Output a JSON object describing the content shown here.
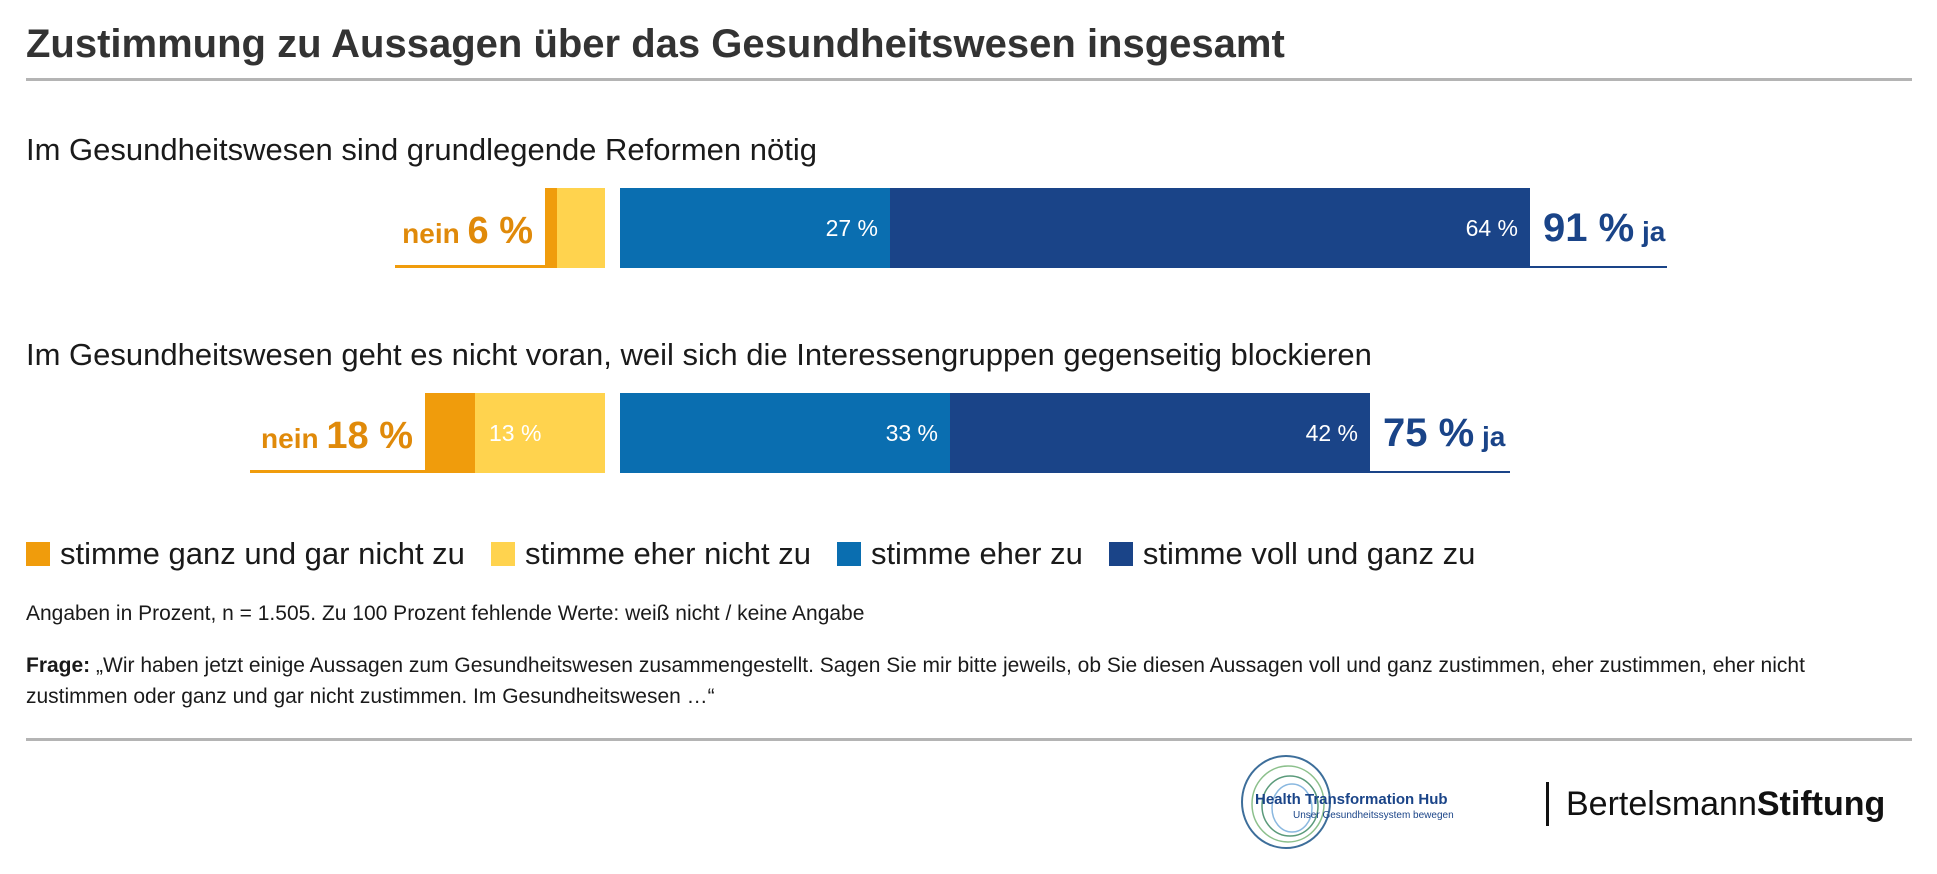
{
  "title": "Zustimmung zu Aussagen über das Gesundheitswesen insgesamt",
  "colors": {
    "ganz_nicht": "#f09c0c",
    "eher_nicht": "#ffd34e",
    "eher_zu": "#0a6eb0",
    "voll_zu": "#1a4488",
    "nein_text": "#e08a0a",
    "ja_text": "#1a4488"
  },
  "chart_data": {
    "type": "bar",
    "orientation": "horizontal-diverging",
    "categories": [
      "Im Gesundheitswesen sind grundlegende Reformen nötig",
      "Im Gesundheitswesen geht es nicht voran, weil sich die Interessengruppen gegenseitig blockieren"
    ],
    "series": [
      {
        "name": "stimme ganz und gar nicht zu",
        "values": [
          1,
          5
        ]
      },
      {
        "name": "stimme eher nicht zu",
        "values": [
          5,
          13
        ]
      },
      {
        "name": "stimme eher zu",
        "values": [
          27,
          33
        ]
      },
      {
        "name": "stimme voll und ganz zu",
        "values": [
          64,
          42
        ]
      }
    ],
    "segment_labels": [
      [
        "",
        "",
        "27 %",
        "64 %"
      ],
      [
        "",
        "13 %",
        "33 %",
        "42 %"
      ]
    ],
    "nein_totals": [
      "6 %",
      "18 %"
    ],
    "ja_totals": [
      "91 %",
      "75 %"
    ],
    "nein_label": "nein",
    "ja_label": "ja",
    "legend_placement": "bottom"
  },
  "note": "Angaben in Prozent, n = 1.505. Zu 100 Prozent fehlende Werte: weiß nicht / keine Angabe",
  "frage_label": "Frage:",
  "frage_text": " „Wir haben jetzt einige Aussagen zum Gesundheitswesen zusammengestellt. Sagen Sie mir bitte jeweils, ob Sie diesen Aussagen voll und ganz zustimmen, eher zustimmen, eher nicht zustimmen oder ganz und gar nicht zustimmen. Im Gesundheitswesen …“",
  "logos": {
    "hub_title": "Health Transformation Hub",
    "hub_sub": "Unser Gesundheitssystem bewegen",
    "bs_light": "Bertelsmann",
    "bs_bold": "Stiftung"
  }
}
